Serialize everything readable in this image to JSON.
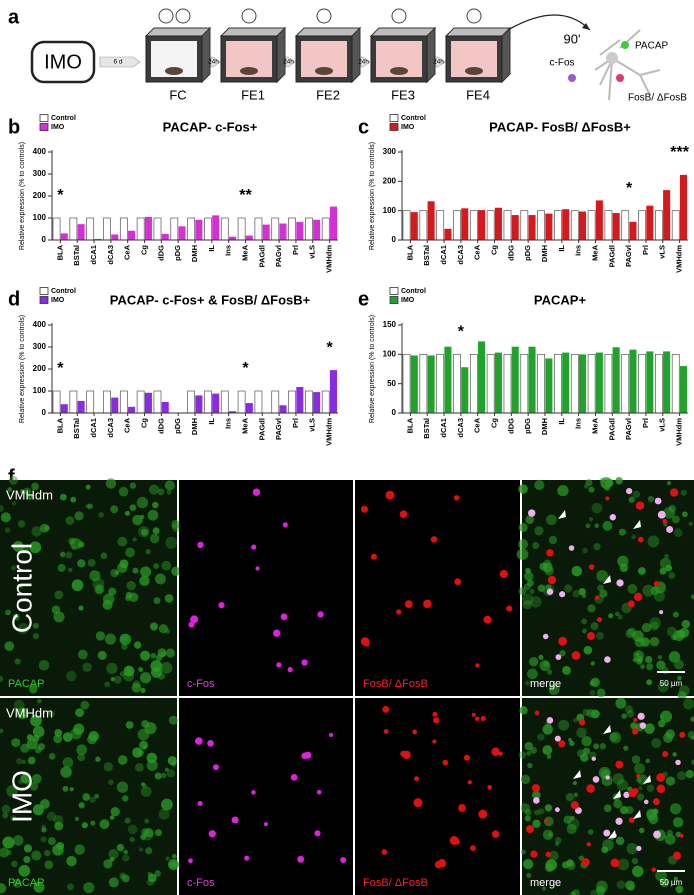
{
  "panel_labels": [
    "a",
    "b",
    "c",
    "d",
    "e",
    "f"
  ],
  "diagram": {
    "start": "IMO",
    "delay": "6 d",
    "interval": "24h",
    "sessions": [
      "FC",
      "FE1",
      "FE2",
      "FE3",
      "FE4"
    ],
    "wait": "90'",
    "markers": [
      "c-Fos",
      "PACAP",
      "FosB/ ΔFosB"
    ]
  },
  "chart_data": [
    {
      "type": "bar",
      "title": "PACAP- c-Fos+",
      "y_label": "Relative expression (% to controls)",
      "categories": [
        "BLA",
        "BSTal",
        "dCA1",
        "dCA3",
        "CeA",
        "Cg",
        "dDG",
        "pDG",
        "DMH",
        "IL",
        "Ins",
        "MeA",
        "PAGdl",
        "PAGvl",
        "Prl",
        "vLS",
        "VMHdm"
      ],
      "series": [
        {
          "name": "Control",
          "color": "#ffffff",
          "values": [
            100,
            100,
            100,
            100,
            100,
            100,
            100,
            100,
            100,
            100,
            100,
            100,
            100,
            100,
            100,
            100,
            100
          ]
        },
        {
          "name": "IMO",
          "color": "#d62fd6",
          "values": [
            30,
            72,
            5,
            25,
            42,
            105,
            28,
            62,
            92,
            112,
            15,
            20,
            70,
            75,
            82,
            92,
            152
          ]
        }
      ],
      "ylim": [
        0,
        400
      ],
      "yticks": [
        0,
        100,
        200,
        300,
        400
      ],
      "annotations": [
        {
          "text": "*",
          "category": "BLA"
        },
        {
          "text": "**",
          "category": "MeA"
        }
      ]
    },
    {
      "type": "bar",
      "title": "PACAP- FosB/ ΔFosB+",
      "y_label": "Relative expression (% to controls)",
      "categories": [
        "BLA",
        "BSTal",
        "dCA1",
        "dCA3",
        "CeA",
        "Cg",
        "dDG",
        "pDG",
        "DMH",
        "IL",
        "Ins",
        "MeA",
        "PAGdl",
        "PAGvl",
        "Prl",
        "vLS",
        "VMHdm"
      ],
      "series": [
        {
          "name": "Control",
          "color": "#ffffff",
          "values": [
            100,
            100,
            100,
            100,
            100,
            100,
            100,
            100,
            100,
            100,
            100,
            100,
            100,
            100,
            100,
            100,
            100
          ]
        },
        {
          "name": "IMO",
          "color": "#d7191c",
          "values": [
            95,
            132,
            38,
            108,
            102,
            110,
            85,
            85,
            90,
            105,
            97,
            135,
            92,
            62,
            117,
            170,
            222
          ]
        }
      ],
      "ylim": [
        0,
        300
      ],
      "yticks": [
        0,
        100,
        200,
        300
      ],
      "annotations": [
        {
          "text": "*",
          "category": "PAGvl"
        },
        {
          "text": "***",
          "category": "VMHdm"
        }
      ]
    },
    {
      "type": "bar",
      "title": "PACAP- c-Fos+ & FosB/ ΔFosB+",
      "y_label": "Relative expression (% to controls)",
      "categories": [
        "BLA",
        "BSTal",
        "dCA1",
        "dCA3",
        "CeA",
        "Cg",
        "dDG",
        "pDG",
        "DMH",
        "IL",
        "Ins",
        "MeA",
        "PAGdl",
        "PAGvl",
        "Prl",
        "vLS",
        "VMHdm"
      ],
      "series": [
        {
          "name": "Control",
          "color": "#ffffff",
          "values": [
            100,
            100,
            100,
            100,
            100,
            100,
            100,
            null,
            100,
            100,
            100,
            100,
            100,
            100,
            100,
            100,
            100
          ]
        },
        {
          "name": "IMO",
          "color": "#8a2be2",
          "values": [
            40,
            55,
            0,
            70,
            28,
            92,
            50,
            null,
            80,
            88,
            8,
            45,
            null,
            35,
            118,
            95,
            195
          ]
        }
      ],
      "ylim": [
        0,
        400
      ],
      "yticks": [
        0,
        100,
        200,
        300,
        400
      ],
      "annotations": [
        {
          "text": "*",
          "category": "BLA"
        },
        {
          "text": "*",
          "category": "MeA"
        },
        {
          "text": "*",
          "category": "VMHdm"
        }
      ]
    },
    {
      "type": "bar",
      "title": "PACAP+",
      "y_label": "Relative expression (% to controls)",
      "categories": [
        "BLA",
        "BSTal",
        "dCA1",
        "dCA3",
        "CeA",
        "Cg",
        "dDG",
        "pDG",
        "DMH",
        "IL",
        "Ins",
        "MeA",
        "PAGdl",
        "PAGvl",
        "Prl",
        "vLS",
        "VMHdm"
      ],
      "series": [
        {
          "name": "Control",
          "color": "#ffffff",
          "values": [
            100,
            100,
            100,
            100,
            100,
            100,
            100,
            100,
            100,
            100,
            100,
            100,
            100,
            100,
            100,
            100,
            100
          ]
        },
        {
          "name": "IMO",
          "color": "#1fa32a",
          "values": [
            98,
            98,
            113,
            78,
            122,
            103,
            113,
            113,
            93,
            103,
            100,
            103,
            112,
            108,
            105,
            105,
            80
          ]
        }
      ],
      "ylim": [
        0,
        150
      ],
      "yticks": [
        0,
        50,
        100,
        150
      ],
      "annotations": [
        {
          "text": "*",
          "category": "dCA3"
        }
      ]
    }
  ],
  "micrographs": {
    "region": "VMHdm",
    "rows": [
      "Control",
      "IMO"
    ],
    "channels": [
      "PACAP",
      "c-Fos",
      "FosB/ ΔFosB",
      "merge"
    ],
    "scale_bar": "50 µm"
  }
}
